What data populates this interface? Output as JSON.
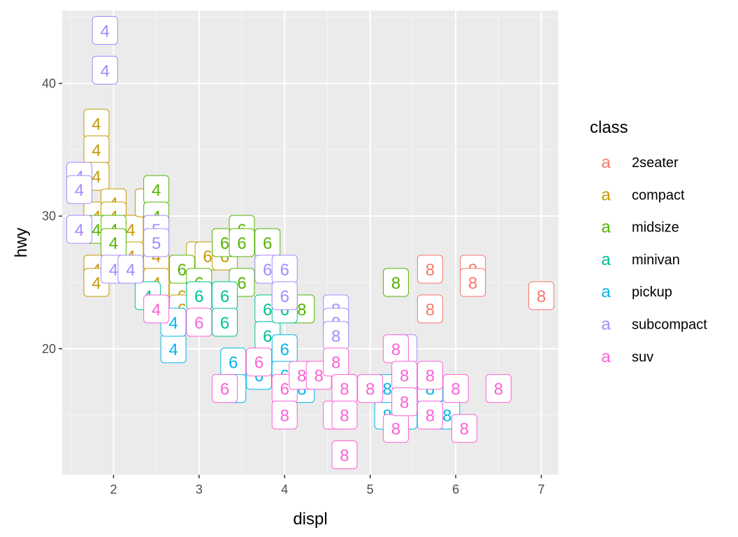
{
  "chart_data": {
    "type": "scatter",
    "title": "",
    "xlabel": "displ",
    "ylabel": "hwy",
    "xlim": [
      1.4,
      7.2
    ],
    "ylim": [
      10.5,
      45.5
    ],
    "x_ticks": [
      2,
      3,
      4,
      5,
      6,
      7
    ],
    "y_ticks": [
      20,
      30,
      40
    ],
    "grid": true,
    "background": "#ebebeb",
    "legend": {
      "title": "class",
      "position": "right",
      "key_glyph": "a",
      "entries": [
        {
          "name": "2seater",
          "color": "#f8766d"
        },
        {
          "name": "compact",
          "color": "#c49a00"
        },
        {
          "name": "midsize",
          "color": "#53b400"
        },
        {
          "name": "minivan",
          "color": "#00c094"
        },
        {
          "name": "pickup",
          "color": "#00b6eb"
        },
        {
          "name": "subcompact",
          "color": "#a58aff"
        },
        {
          "name": "suv",
          "color": "#fb61d7"
        }
      ]
    },
    "series": [
      {
        "name": "2seater",
        "points": [
          {
            "x": 5.7,
            "y": 26,
            "label": "8"
          },
          {
            "x": 5.7,
            "y": 23,
            "label": "8"
          },
          {
            "x": 6.2,
            "y": 26,
            "label": "8"
          },
          {
            "x": 6.2,
            "y": 25,
            "label": "8"
          },
          {
            "x": 7.0,
            "y": 24,
            "label": "8"
          }
        ]
      },
      {
        "name": "compact",
        "points": [
          {
            "x": 1.8,
            "y": 37,
            "label": "4"
          },
          {
            "x": 1.8,
            "y": 35,
            "label": "4"
          },
          {
            "x": 1.8,
            "y": 33,
            "label": "4"
          },
          {
            "x": 1.8,
            "y": 30,
            "label": "4"
          },
          {
            "x": 1.8,
            "y": 26,
            "label": "4"
          },
          {
            "x": 1.8,
            "y": 25,
            "label": "4"
          },
          {
            "x": 2.0,
            "y": 31,
            "label": "4"
          },
          {
            "x": 2.0,
            "y": 30,
            "label": "4"
          },
          {
            "x": 2.2,
            "y": 29,
            "label": "4"
          },
          {
            "x": 2.2,
            "y": 27,
            "label": "4"
          },
          {
            "x": 2.4,
            "y": 31,
            "label": "4"
          },
          {
            "x": 2.5,
            "y": 27,
            "label": "4"
          },
          {
            "x": 2.5,
            "y": 25,
            "label": "4"
          },
          {
            "x": 2.8,
            "y": 24,
            "label": "6"
          },
          {
            "x": 2.8,
            "y": 23,
            "label": "6"
          },
          {
            "x": 3.0,
            "y": 27,
            "label": "6"
          },
          {
            "x": 3.1,
            "y": 27,
            "label": "6"
          },
          {
            "x": 3.3,
            "y": 27,
            "label": "6"
          }
        ]
      },
      {
        "name": "midsize",
        "points": [
          {
            "x": 1.8,
            "y": 29,
            "label": "4"
          },
          {
            "x": 2.0,
            "y": 29,
            "label": "4"
          },
          {
            "x": 2.0,
            "y": 28,
            "label": "4"
          },
          {
            "x": 2.5,
            "y": 32,
            "label": "4"
          },
          {
            "x": 2.5,
            "y": 30,
            "label": "4"
          },
          {
            "x": 2.8,
            "y": 26,
            "label": "6"
          },
          {
            "x": 3.0,
            "y": 25,
            "label": "6"
          },
          {
            "x": 3.3,
            "y": 28,
            "label": "6"
          },
          {
            "x": 3.5,
            "y": 29,
            "label": "6"
          },
          {
            "x": 3.5,
            "y": 28,
            "label": "6"
          },
          {
            "x": 3.5,
            "y": 25,
            "label": "6"
          },
          {
            "x": 3.8,
            "y": 28,
            "label": "6"
          },
          {
            "x": 3.8,
            "y": 26,
            "label": "6"
          },
          {
            "x": 4.2,
            "y": 23,
            "label": "8"
          },
          {
            "x": 5.3,
            "y": 25,
            "label": "8"
          }
        ]
      },
      {
        "name": "minivan",
        "points": [
          {
            "x": 2.4,
            "y": 24,
            "label": "4"
          },
          {
            "x": 3.0,
            "y": 24,
            "label": "6"
          },
          {
            "x": 3.3,
            "y": 24,
            "label": "6"
          },
          {
            "x": 3.3,
            "y": 22,
            "label": "6"
          },
          {
            "x": 3.8,
            "y": 23,
            "label": "6"
          },
          {
            "x": 3.8,
            "y": 21,
            "label": "6"
          },
          {
            "x": 4.0,
            "y": 23,
            "label": "6"
          }
        ]
      },
      {
        "name": "pickup",
        "points": [
          {
            "x": 2.7,
            "y": 20,
            "label": "4"
          },
          {
            "x": 2.7,
            "y": 22,
            "label": "4"
          },
          {
            "x": 3.4,
            "y": 19,
            "label": "6"
          },
          {
            "x": 3.4,
            "y": 17,
            "label": "6"
          },
          {
            "x": 3.7,
            "y": 18,
            "label": "6"
          },
          {
            "x": 4.0,
            "y": 20,
            "label": "6"
          },
          {
            "x": 4.0,
            "y": 18,
            "label": "6"
          },
          {
            "x": 4.2,
            "y": 17,
            "label": "8"
          },
          {
            "x": 4.7,
            "y": 17,
            "label": "8"
          },
          {
            "x": 5.2,
            "y": 15,
            "label": "8"
          },
          {
            "x": 5.2,
            "y": 17,
            "label": "8"
          },
          {
            "x": 5.4,
            "y": 15,
            "label": "8"
          },
          {
            "x": 5.7,
            "y": 17,
            "label": "8"
          },
          {
            "x": 5.9,
            "y": 15,
            "label": "8"
          }
        ]
      },
      {
        "name": "subcompact",
        "points": [
          {
            "x": 1.6,
            "y": 33,
            "label": "4"
          },
          {
            "x": 1.6,
            "y": 32,
            "label": "4"
          },
          {
            "x": 1.6,
            "y": 29,
            "label": "4"
          },
          {
            "x": 1.9,
            "y": 44,
            "label": "4"
          },
          {
            "x": 1.9,
            "y": 41,
            "label": "4"
          },
          {
            "x": 2.0,
            "y": 26,
            "label": "4"
          },
          {
            "x": 2.2,
            "y": 26,
            "label": "4"
          },
          {
            "x": 2.5,
            "y": 29,
            "label": "5"
          },
          {
            "x": 2.5,
            "y": 28,
            "label": "5"
          },
          {
            "x": 3.8,
            "y": 26,
            "label": "6"
          },
          {
            "x": 4.0,
            "y": 26,
            "label": "6"
          },
          {
            "x": 4.0,
            "y": 24,
            "label": "6"
          },
          {
            "x": 4.6,
            "y": 23,
            "label": "8"
          },
          {
            "x": 4.6,
            "y": 22,
            "label": "8"
          },
          {
            "x": 4.6,
            "y": 21,
            "label": "8"
          },
          {
            "x": 5.4,
            "y": 20,
            "label": "8"
          }
        ]
      },
      {
        "name": "suv",
        "points": [
          {
            "x": 2.5,
            "y": 23,
            "label": "4"
          },
          {
            "x": 3.0,
            "y": 22,
            "label": "6"
          },
          {
            "x": 3.3,
            "y": 17,
            "label": "6"
          },
          {
            "x": 3.7,
            "y": 19,
            "label": "6"
          },
          {
            "x": 4.0,
            "y": 17,
            "label": "6"
          },
          {
            "x": 4.0,
            "y": 15,
            "label": "8"
          },
          {
            "x": 4.2,
            "y": 18,
            "label": "8"
          },
          {
            "x": 4.4,
            "y": 18,
            "label": "8"
          },
          {
            "x": 4.6,
            "y": 19,
            "label": "8"
          },
          {
            "x": 4.6,
            "y": 15,
            "label": "8"
          },
          {
            "x": 4.7,
            "y": 17,
            "label": "8"
          },
          {
            "x": 4.7,
            "y": 15,
            "label": "8"
          },
          {
            "x": 4.7,
            "y": 12,
            "label": "8"
          },
          {
            "x": 5.0,
            "y": 17,
            "label": "8"
          },
          {
            "x": 5.3,
            "y": 20,
            "label": "8"
          },
          {
            "x": 5.3,
            "y": 14,
            "label": "8"
          },
          {
            "x": 5.4,
            "y": 18,
            "label": "8"
          },
          {
            "x": 5.4,
            "y": 16,
            "label": "8"
          },
          {
            "x": 5.7,
            "y": 18,
            "label": "8"
          },
          {
            "x": 5.7,
            "y": 15,
            "label": "8"
          },
          {
            "x": 6.0,
            "y": 17,
            "label": "8"
          },
          {
            "x": 6.1,
            "y": 14,
            "label": "8"
          },
          {
            "x": 6.5,
            "y": 17,
            "label": "8"
          }
        ]
      }
    ]
  }
}
